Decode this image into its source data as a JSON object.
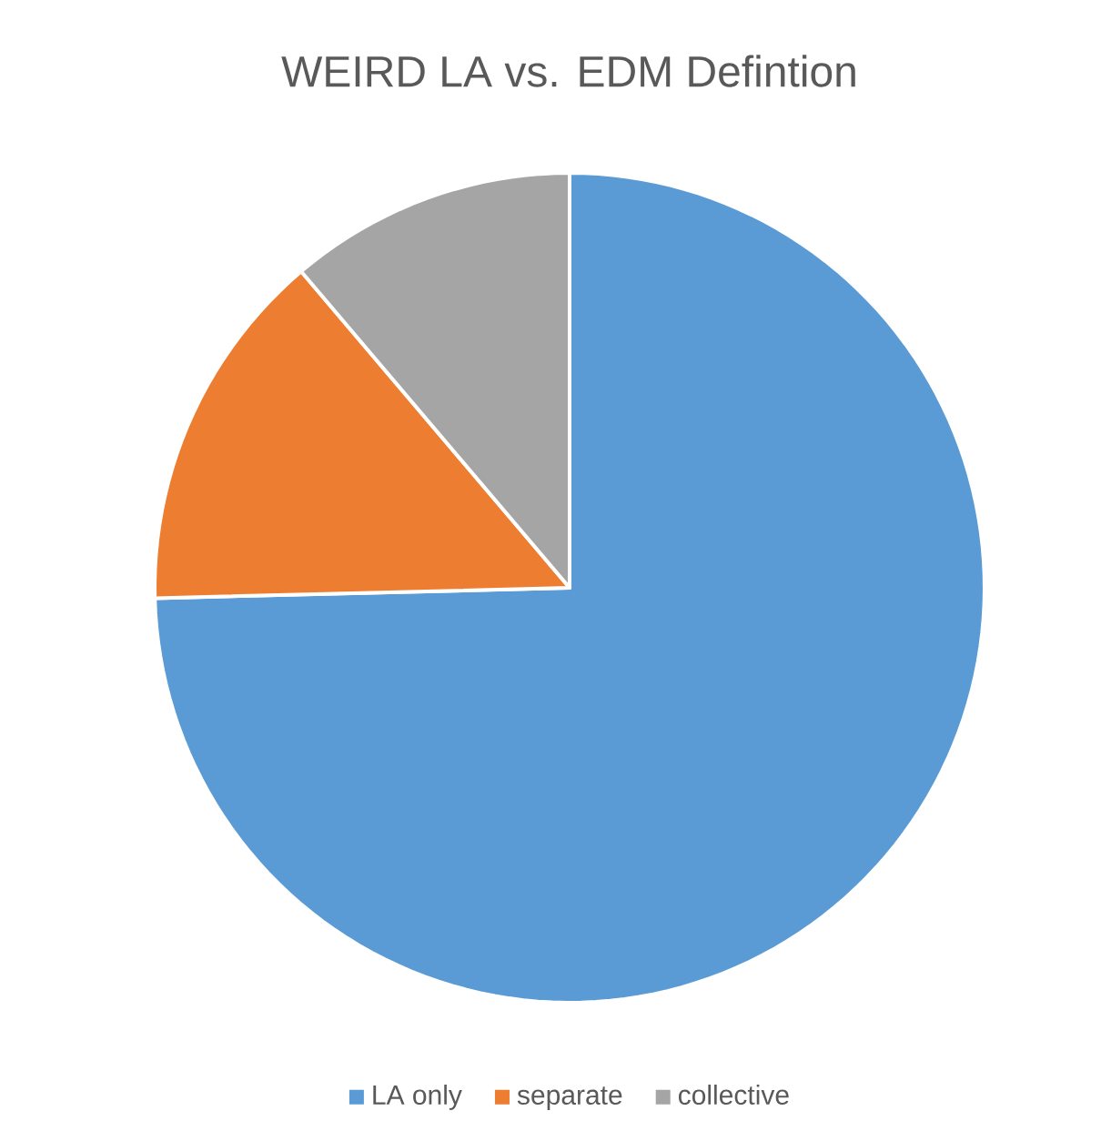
{
  "chart_data": {
    "type": "pie",
    "title": "WEIRD LA vs. EDM Defintion",
    "categories": [
      "LA only",
      "separate",
      "collective"
    ],
    "values": [
      74.6,
      14.2,
      11.2
    ],
    "colors": [
      "#5b9bd5",
      "#ed7d31",
      "#a5a5a5"
    ],
    "legend": "bottom"
  }
}
